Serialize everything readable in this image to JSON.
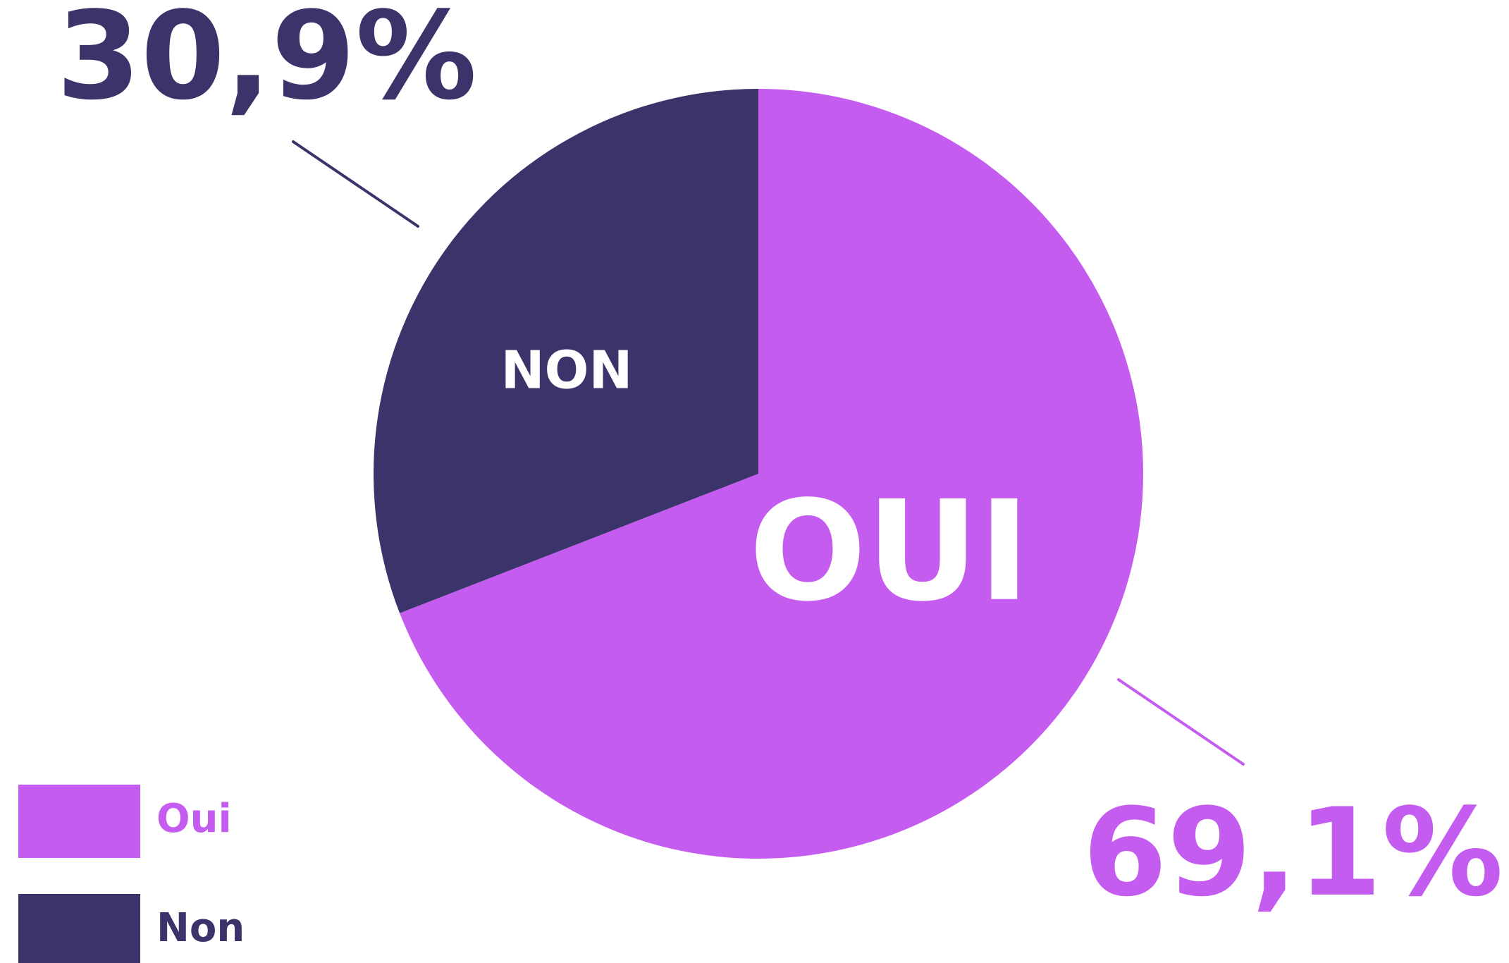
{
  "chart_data": {
    "type": "pie",
    "categories": [
      "Oui",
      "Non"
    ],
    "values": [
      69.1,
      30.9
    ],
    "value_labels": [
      "69,1%",
      "30,9%"
    ],
    "slice_labels": [
      "OUI",
      "NON"
    ],
    "colors": [
      "#c55cf0",
      "#3a346b"
    ],
    "legend": "bottom-left"
  }
}
